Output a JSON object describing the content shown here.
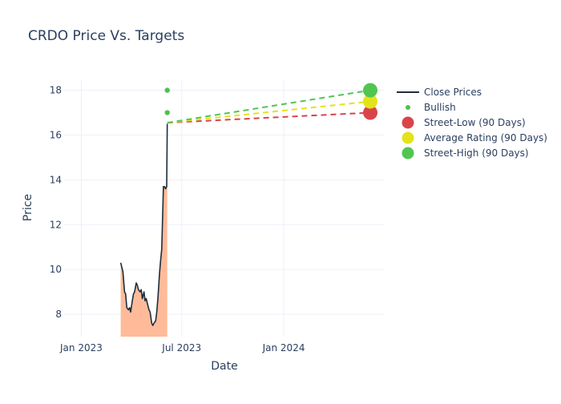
{
  "chart_data": {
    "type": "line",
    "title": "CRDO Price Vs. Targets",
    "xlabel": "Date",
    "ylabel": "Price",
    "x_range": [
      "2022-12-01",
      "2024-07-01"
    ],
    "ylim": [
      7,
      18.45
    ],
    "x_ticks": [
      {
        "date": "2023-01-01",
        "label": "Jan 2023"
      },
      {
        "date": "2023-07-01",
        "label": "Jul 2023"
      },
      {
        "date": "2024-01-01",
        "label": "Jan 2024"
      }
    ],
    "y_ticks": [
      8,
      10,
      12,
      14,
      16,
      18
    ],
    "grid": true,
    "legend_position": "right",
    "close_prices": {
      "name": "Close Prices",
      "color": "#1f2d3d",
      "fill_color": "#ffbb99",
      "points": [
        [
          "2023-03-13",
          10.3
        ],
        [
          "2023-03-15",
          10.1
        ],
        [
          "2023-03-17",
          9.9
        ],
        [
          "2023-03-20",
          9.0
        ],
        [
          "2023-03-22",
          8.9
        ],
        [
          "2023-03-24",
          8.3
        ],
        [
          "2023-03-27",
          8.2
        ],
        [
          "2023-03-29",
          8.3
        ],
        [
          "2023-03-31",
          8.1
        ],
        [
          "2023-04-03",
          8.6
        ],
        [
          "2023-04-05",
          8.9
        ],
        [
          "2023-04-07",
          9.0
        ],
        [
          "2023-04-10",
          9.4
        ],
        [
          "2023-04-12",
          9.3
        ],
        [
          "2023-04-14",
          9.1
        ],
        [
          "2023-04-17",
          9.0
        ],
        [
          "2023-04-19",
          9.1
        ],
        [
          "2023-04-21",
          8.7
        ],
        [
          "2023-04-24",
          9.0
        ],
        [
          "2023-04-26",
          8.6
        ],
        [
          "2023-04-28",
          8.7
        ],
        [
          "2023-05-01",
          8.4
        ],
        [
          "2023-05-03",
          8.2
        ],
        [
          "2023-05-05",
          8.1
        ],
        [
          "2023-05-08",
          7.6
        ],
        [
          "2023-05-10",
          7.5
        ],
        [
          "2023-05-12",
          7.6
        ],
        [
          "2023-05-15",
          7.7
        ],
        [
          "2023-05-17",
          8.1
        ],
        [
          "2023-05-19",
          8.7
        ],
        [
          "2023-05-22",
          9.8
        ],
        [
          "2023-05-24",
          10.4
        ],
        [
          "2023-05-26",
          10.9
        ],
        [
          "2023-05-29",
          13.7
        ],
        [
          "2023-05-31",
          13.7
        ],
        [
          "2023-06-02",
          13.6
        ],
        [
          "2023-06-04",
          13.7
        ],
        [
          "2023-06-05",
          16.5
        ]
      ]
    },
    "bullish": {
      "name": "Bullish",
      "color": "#4fc14f",
      "points": [
        [
          "2023-06-05",
          18.0
        ],
        [
          "2023-06-05",
          17.0
        ]
      ]
    },
    "targets": {
      "start": [
        "2023-06-05",
        16.55
      ],
      "end_date": "2024-06-05",
      "series": [
        {
          "name": "Street-Low (90 Days)",
          "value": 17.0,
          "color": "#d9444a"
        },
        {
          "name": "Average Rating (90 Days)",
          "value": 17.5,
          "color": "#e3e31c"
        },
        {
          "name": "Street-High (90 Days)",
          "value": 18.0,
          "color": "#50c651"
        }
      ]
    }
  }
}
